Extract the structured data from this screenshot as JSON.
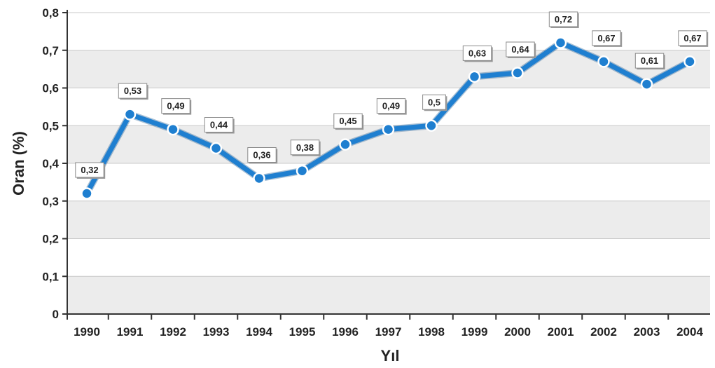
{
  "chart_data": {
    "type": "line",
    "title": "",
    "xlabel": "Yıl",
    "ylabel": "Oran (%)",
    "ylim": [
      0,
      0.8
    ],
    "y_ticks": [
      "0",
      "0,1",
      "0,2",
      "0,3",
      "0,4",
      "0,5",
      "0,6",
      "0,7",
      "0,8"
    ],
    "grid": true,
    "legend": "none",
    "categories": [
      "1990",
      "1991",
      "1992",
      "1993",
      "1994",
      "1995",
      "1996",
      "1997",
      "1998",
      "1999",
      "2000",
      "2001",
      "2002",
      "2003",
      "2004"
    ],
    "series": [
      {
        "values": [
          0.32,
          0.53,
          0.49,
          0.44,
          0.36,
          0.38,
          0.45,
          0.49,
          0.5,
          0.63,
          0.64,
          0.72,
          0.67,
          0.61,
          0.67
        ],
        "labels": [
          "0,32",
          "0,53",
          "0,49",
          "0,44",
          "0,36",
          "0,38",
          "0,45",
          "0,49",
          "0,5",
          "0,63",
          "0,64",
          "0,72",
          "0,67",
          "0,61",
          "0,67"
        ],
        "color": "#1f7fd0"
      }
    ],
    "colors": {
      "band_light": "#ffffff",
      "band_dark": "#ececec",
      "grid": "#c8c8c8",
      "axis": "#333333"
    }
  }
}
